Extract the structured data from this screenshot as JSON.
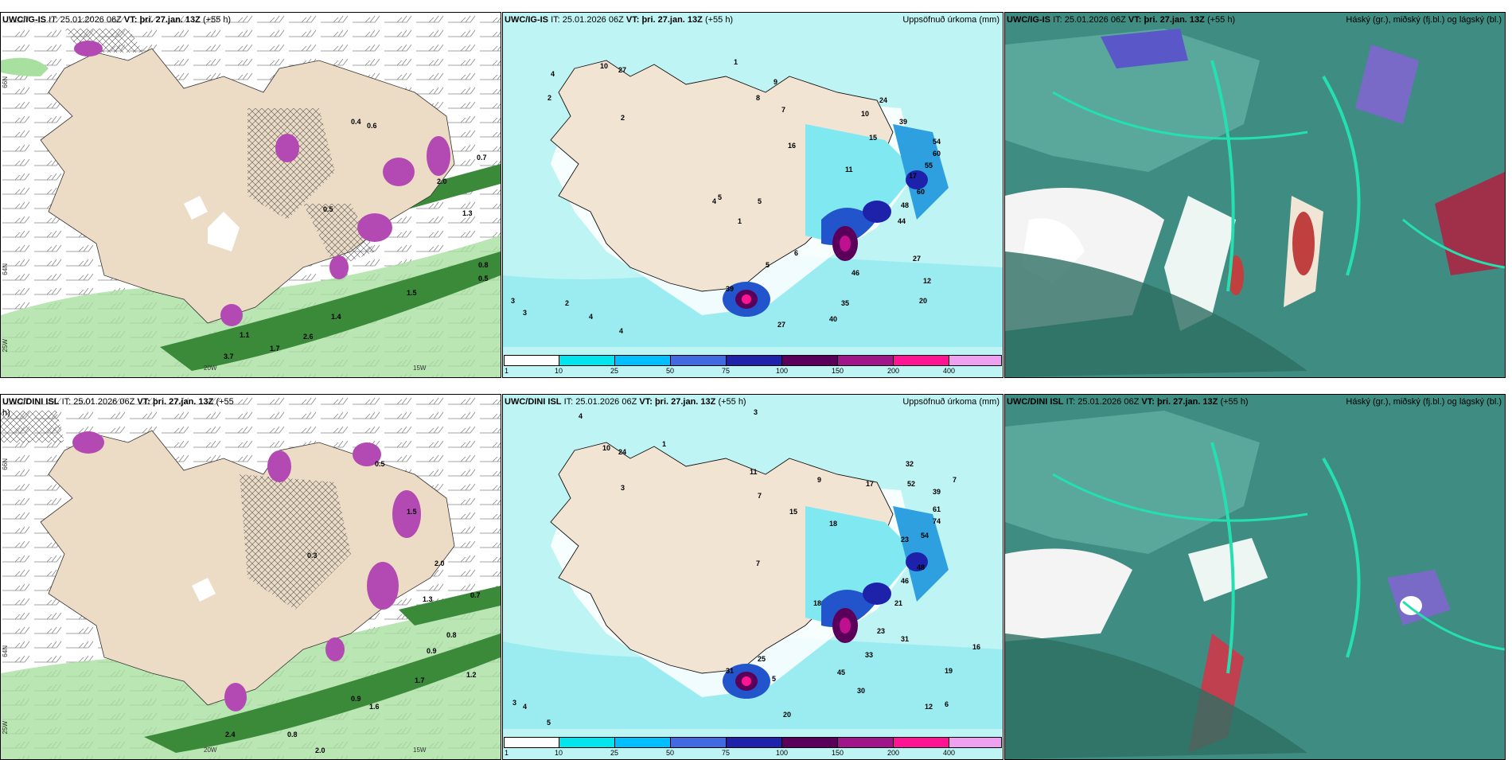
{
  "panels": [
    {
      "model": "UWC/IG-IS",
      "it_label": "IT:",
      "it_value": "25.01.2026 06Z",
      "vt_label": "VT:",
      "vt_value": "þri. 27.jan. 13Z",
      "lead": "(+55 h)",
      "right_title": "",
      "lat_labels": [
        "66N",
        "64N",
        "25W"
      ],
      "lon_labels": [
        "20W",
        "15W"
      ],
      "numbers": [
        "0.4",
        "0.5",
        "0.6",
        "1.1",
        "1.4",
        "1.7",
        "2.6",
        "3.7",
        "0.8",
        "1.3",
        "0.7",
        "0.5",
        "1.5",
        "2.0"
      ]
    },
    {
      "model": "UWC/IG-IS",
      "it_label": "IT:",
      "it_value": "25.01.2026 06Z",
      "vt_label": "VT:",
      "vt_value": "þri. 27.jan. 13Z",
      "lead": "(+55 h)",
      "right_title": "Uppsöfnuð úrkoma (mm)",
      "numbers": [
        "3",
        "4",
        "1",
        "10",
        "27",
        "2",
        "4",
        "5",
        "16",
        "8",
        "9",
        "10",
        "15",
        "11",
        "24",
        "39",
        "54",
        "60",
        "55",
        "17",
        "60",
        "48",
        "44",
        "27",
        "12",
        "20",
        "46",
        "35",
        "40",
        "27",
        "39",
        "5",
        "1",
        "3",
        "2",
        "4",
        "5",
        "4",
        "2",
        "7",
        "6"
      ]
    },
    {
      "model": "UWC/IG-IS",
      "it_label": "IT:",
      "it_value": "25.01.2026 06Z",
      "vt_label": "VT:",
      "vt_value": "þri. 27.jan. 13Z",
      "lead": "(+55 h)",
      "right_title": "Háský (gr.), miðský (fj.bl.) og lágský (bl.)"
    },
    {
      "model": "UWC/DINI ISL",
      "it_label": "IT:",
      "it_value": "25.01.2026 06Z",
      "vt_label": "VT:",
      "vt_value": "þri. 27.jan. 13Z",
      "lead": "(+55",
      "lead2": "h)",
      "right_title": "",
      "lat_labels": [
        "66N",
        "64N",
        "25W"
      ],
      "lon_labels": [
        "20W",
        "15W"
      ],
      "numbers": [
        "0.3",
        "0.5",
        "1.5",
        "2.0",
        "1.3",
        "0.7",
        "0.8",
        "0.9",
        "1.6",
        "0.9",
        "2.4",
        "0.8",
        "2.0",
        "1.7",
        "1.2"
      ]
    },
    {
      "model": "UWC/DINI ISL",
      "it_label": "IT:",
      "it_value": "25.01.2026 06Z",
      "vt_label": "VT:",
      "vt_value": "þri. 27.jan. 13Z",
      "lead": "(+55 h)",
      "right_title": "Uppsöfnuð úrkoma (mm)",
      "numbers": [
        "3",
        "4",
        "1",
        "10",
        "24",
        "3",
        "11",
        "7",
        "15",
        "9",
        "18",
        "17",
        "32",
        "52",
        "39",
        "61",
        "74",
        "54",
        "23",
        "48",
        "46",
        "21",
        "23",
        "31",
        "33",
        "45",
        "30",
        "16",
        "19",
        "12",
        "6",
        "7",
        "18",
        "25",
        "31",
        "7",
        "20",
        "5",
        "4",
        "3",
        "5"
      ]
    },
    {
      "model": "UWC/DINI ISL",
      "it_label": "IT:",
      "it_value": "25.01.2026 06Z",
      "vt_label": "VT:",
      "vt_value": "þri. 27.jan. 13Z",
      "lead": "(+55 h)",
      "right_title": "Háský (gr.), miðský (fj.bl.) og lágský (bl.)"
    }
  ],
  "colorbar": {
    "ticks": [
      "1",
      "10",
      "25",
      "50",
      "75",
      "100",
      "150",
      "200",
      "400"
    ],
    "colors": [
      "#ffffff",
      "#00e5ee",
      "#00bfff",
      "#4169e1",
      "#1e22aa",
      "#5a005a",
      "#a0168a",
      "#ff1493",
      "#f0a0f0"
    ]
  }
}
